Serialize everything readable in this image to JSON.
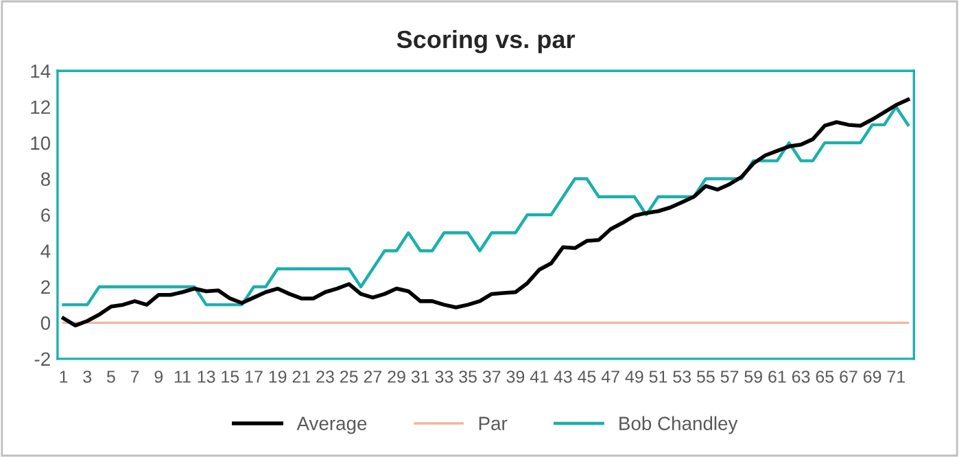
{
  "chart_data": {
    "type": "line",
    "title": "Scoring vs. par",
    "categories": [
      "1",
      null,
      "3",
      null,
      "5",
      null,
      "7",
      null,
      "9",
      null,
      "11",
      null,
      "13",
      null,
      "15",
      null,
      "17",
      null,
      "19",
      null,
      "21",
      null,
      "23",
      null,
      "25",
      null,
      "27",
      null,
      "29",
      null,
      "31",
      null,
      "33",
      null,
      "35",
      null,
      "37",
      null,
      "39",
      null,
      "41",
      null,
      "43",
      null,
      "45",
      null,
      "47",
      null,
      "49",
      null,
      "51",
      null,
      "53",
      null,
      "55",
      null,
      "57",
      null,
      "59",
      null,
      "61",
      null,
      "63",
      null,
      "65",
      null,
      "67",
      null,
      "69",
      null,
      "71",
      null
    ],
    "series": [
      {
        "name": "Average",
        "color": "#000000",
        "values": [
          0.25,
          -0.15,
          0.1,
          0.45,
          0.9,
          1.0,
          1.2,
          1.0,
          1.55,
          1.55,
          1.7,
          1.9,
          1.75,
          1.8,
          1.35,
          1.1,
          1.4,
          1.7,
          1.9,
          1.6,
          1.35,
          1.35,
          1.7,
          1.9,
          2.15,
          1.6,
          1.4,
          1.6,
          1.9,
          1.75,
          1.2,
          1.2,
          1.0,
          0.85,
          1.0,
          1.2,
          1.6,
          1.65,
          1.7,
          2.2,
          2.95,
          3.3,
          4.2,
          4.15,
          4.55,
          4.6,
          5.2,
          5.55,
          5.95,
          6.1,
          6.2,
          6.4,
          6.7,
          7.0,
          7.6,
          7.4,
          7.7,
          8.1,
          8.85,
          9.3,
          9.55,
          9.8,
          9.9,
          10.2,
          10.95,
          11.15,
          11.0,
          10.95,
          11.3,
          11.7,
          12.1,
          12.4
        ]
      },
      {
        "name": "Par",
        "color": "#f4b4a2",
        "values": [
          0,
          0,
          0,
          0,
          0,
          0,
          0,
          0,
          0,
          0,
          0,
          0,
          0,
          0,
          0,
          0,
          0,
          0,
          0,
          0,
          0,
          0,
          0,
          0,
          0,
          0,
          0,
          0,
          0,
          0,
          0,
          0,
          0,
          0,
          0,
          0,
          0,
          0,
          0,
          0,
          0,
          0,
          0,
          0,
          0,
          0,
          0,
          0,
          0,
          0,
          0,
          0,
          0,
          0,
          0,
          0,
          0,
          0,
          0,
          0,
          0,
          0,
          0,
          0,
          0,
          0,
          0,
          0,
          0,
          0,
          0,
          0
        ]
      },
      {
        "name": "Bob Chandley",
        "color": "#1bb0ac",
        "values": [
          1,
          1,
          1,
          2,
          2,
          2,
          2,
          2,
          2,
          2,
          2,
          2,
          1,
          1,
          1,
          1,
          2,
          2,
          3,
          3,
          3,
          3,
          3,
          3,
          3,
          2,
          3,
          4,
          4,
          5,
          4,
          4,
          5,
          5,
          5,
          4,
          5,
          5,
          5,
          6,
          6,
          6,
          7,
          8,
          8,
          7,
          7,
          7,
          7,
          6,
          7,
          7,
          7,
          7,
          8,
          8,
          8,
          8,
          9,
          9,
          9,
          10,
          9,
          9,
          10,
          10,
          10,
          10,
          11,
          11,
          12,
          11
        ]
      }
    ],
    "ylim": [
      -2,
      14
    ],
    "yticks": [
      -2,
      0,
      2,
      4,
      6,
      8,
      10,
      12,
      14
    ],
    "grid": false,
    "legend": "bottom",
    "marker": "none",
    "line_style": "solid"
  }
}
